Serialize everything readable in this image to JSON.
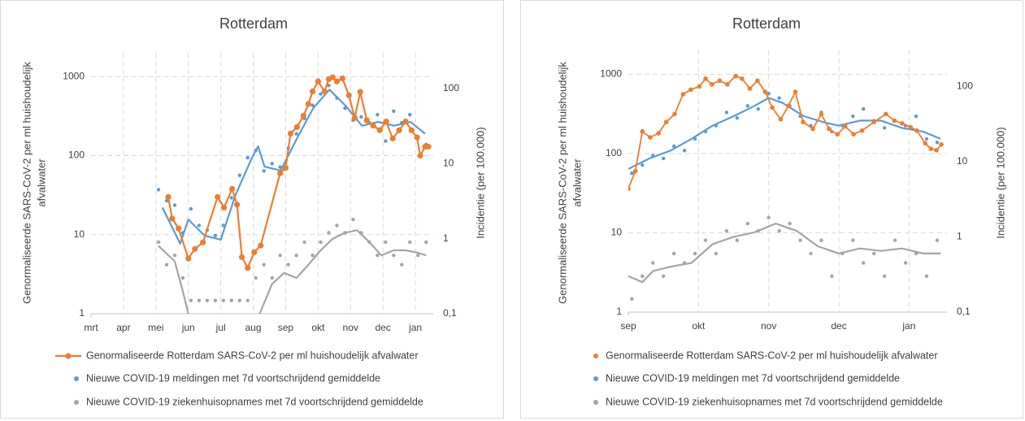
{
  "chart_data": [
    {
      "type": "line",
      "title": "Rotterdam",
      "y_label": [
        "Genormaliseerde SARS-CoV-2 per ml huishoudelijk",
        "afvalwater"
      ],
      "y2_label": "Incidentie (per 100.000)",
      "log_y": true,
      "grid": true,
      "xlim": [
        0,
        10.55
      ],
      "xticks": [
        {
          "value": 0,
          "label": "mrt"
        },
        {
          "value": 1,
          "label": "apr"
        },
        {
          "value": 2,
          "label": "mei"
        },
        {
          "value": 3,
          "label": "jun"
        },
        {
          "value": 4,
          "label": "jul"
        },
        {
          "value": 5,
          "label": "aug"
        },
        {
          "value": 6,
          "label": "sep"
        },
        {
          "value": 7,
          "label": "okt"
        },
        {
          "value": 8,
          "label": "nov"
        },
        {
          "value": 9,
          "label": "dec"
        },
        {
          "value": 10,
          "label": "jan"
        }
      ],
      "ylim": [
        1,
        2000
      ],
      "yticks": [
        1,
        10,
        100,
        1000
      ],
      "y2lim": [
        0.1,
        300
      ],
      "y2ticks": [
        {
          "value": 0.1,
          "label": "0,1"
        },
        1,
        10,
        100
      ],
      "series": [
        {
          "name": "Genormaliseerde Rotterdam SARS-CoV-2 per ml huishoudelijk afvalwater",
          "color": "#ed7d31",
          "axis": "y",
          "style": "line+markers",
          "x": [
            2.38,
            2.5,
            2.7,
            3.0,
            3.2,
            3.45,
            3.9,
            4.1,
            4.35,
            4.5,
            4.65,
            4.83,
            5.03,
            5.23,
            5.83,
            6.0,
            6.15,
            6.35,
            6.55,
            6.7,
            6.83,
            7.0,
            7.2,
            7.33,
            7.45,
            7.58,
            7.75,
            7.95,
            8.13,
            8.3,
            8.5,
            8.7,
            8.9,
            9.1,
            9.3,
            9.5,
            9.7,
            9.88,
            10.05,
            10.15,
            10.3,
            10.4
          ],
          "values": [
            30,
            16,
            12,
            5,
            6.6,
            8,
            30,
            22,
            38,
            24,
            5.2,
            3.8,
            6,
            7.3,
            60,
            70,
            190,
            230,
            320,
            450,
            650,
            870,
            650,
            930,
            980,
            870,
            950,
            580,
            300,
            640,
            280,
            240,
            210,
            270,
            165,
            210,
            270,
            210,
            170,
            100,
            130,
            130
          ]
        },
        {
          "name": "Nieuwe COVID-19 meldingen met 7d voortschrijdend gemiddelde",
          "color": "#5b9bd5",
          "axis": "y2",
          "style": "dots+average",
          "x": [
            2.08,
            2.33,
            2.58,
            2.83,
            3.08,
            3.33,
            3.58,
            3.83,
            4.08,
            4.33,
            4.58,
            4.83,
            5.08,
            5.33,
            5.58,
            5.83,
            6.08,
            6.33,
            6.58,
            6.83,
            7.08,
            7.33,
            7.58,
            7.83,
            8.08,
            8.33,
            8.58,
            8.83,
            9.08,
            9.33,
            9.58,
            9.83,
            10.08,
            10.33
          ],
          "values": [
            4.5,
            3.2,
            2.8,
            1.2,
            2.5,
            1.5,
            1.3,
            1.1,
            1.5,
            3.5,
            7,
            12,
            15,
            8,
            10,
            9,
            16,
            25,
            40,
            60,
            85,
            110,
            75,
            55,
            38,
            42,
            35,
            45,
            20,
            50,
            35,
            45,
            22,
            18
          ],
          "average_x": [
            2.2,
            2.75,
            3.0,
            3.5,
            4.0,
            4.45,
            4.95,
            5.15,
            5.35,
            5.85,
            6.35,
            6.85,
            7.35,
            7.85,
            8.35,
            8.85,
            9.35,
            9.85,
            10.3
          ],
          "average": [
            2.6,
            0.86,
            1.8,
            1.1,
            0.97,
            3.8,
            11.7,
            17,
            9.1,
            8.1,
            21.8,
            55,
            97,
            59,
            32,
            36,
            32,
            36,
            25
          ]
        },
        {
          "name": "Nieuwe COVID-19 ziekenhuisopnames met 7d voortschrijdend gemiddelde",
          "color": "#a5a5a5",
          "axis": "y2",
          "style": "dots+average",
          "x": [
            2.08,
            2.33,
            2.58,
            2.83,
            3.08,
            3.33,
            3.58,
            3.83,
            4.08,
            4.33,
            4.58,
            4.83,
            5.08,
            5.33,
            5.58,
            5.83,
            6.08,
            6.33,
            6.58,
            6.83,
            7.08,
            7.33,
            7.58,
            7.83,
            8.08,
            8.33,
            8.58,
            8.83,
            9.08,
            9.33,
            9.58,
            9.83,
            10.08,
            10.33
          ],
          "values": [
            0.9,
            0.45,
            0.6,
            0.3,
            0.15,
            0.15,
            0.15,
            0.15,
            0.15,
            0.15,
            0.15,
            0.15,
            0.3,
            0.45,
            0.3,
            0.6,
            0.45,
            0.6,
            0.9,
            0.6,
            0.9,
            1.2,
            1.5,
            1.2,
            1.8,
            1.2,
            0.9,
            0.6,
            0.9,
            0.6,
            0.45,
            0.9,
            0.6,
            0.9
          ],
          "average_x": [
            2.08,
            2.58,
            2.83,
            3.0,
            4.0,
            5.2,
            5.58,
            5.95,
            6.33,
            6.7,
            7.08,
            7.45,
            7.83,
            8.2,
            8.58,
            8.95,
            9.33,
            9.7,
            10.08,
            10.33
          ],
          "average": [
            0.8,
            0.5,
            0.2,
            0.1,
            null,
            0.1,
            0.25,
            0.35,
            0.3,
            0.45,
            0.7,
            1.0,
            1.2,
            1.3,
            0.9,
            0.6,
            0.7,
            0.7,
            0.65,
            0.6
          ]
        }
      ]
    },
    {
      "type": "line",
      "title": "Rotterdam",
      "y_label": [
        "Genormaliseerde SARS-CoV-2 per ml huishoudelijk",
        "afvalwater"
      ],
      "y2_label": "Incidentie (per 100.000)",
      "log_y": true,
      "grid": true,
      "xlim": [
        0,
        4.54
      ],
      "xticks": [
        {
          "value": 0,
          "label": "sep"
        },
        {
          "value": 1,
          "label": "okt"
        },
        {
          "value": 2,
          "label": "nov"
        },
        {
          "value": 3,
          "label": "dec"
        },
        {
          "value": 4,
          "label": "jan"
        }
      ],
      "ylim": [
        1,
        2000
      ],
      "yticks": [
        1,
        10,
        100,
        1000
      ],
      "y2lim": [
        0.1,
        300
      ],
      "y2ticks": [
        {
          "value": 0.1,
          "label": "0,1"
        },
        1,
        10,
        100
      ],
      "series": [
        {
          "name": "Genormaliseerde Rotterdam SARS-CoV-2 per ml huishoudelijk afvalwater",
          "color": "#ed7d31",
          "axis": "y",
          "style": "dots+line",
          "x": [
            0,
            0.1,
            0.2,
            0.31,
            0.43,
            0.54,
            0.66,
            0.78,
            0.89,
            1.01,
            1.1,
            1.19,
            1.3,
            1.41,
            1.53,
            1.62,
            1.73,
            1.84,
            1.95,
            2.05,
            2.17,
            2.28,
            2.38,
            2.49,
            2.63,
            2.75,
            2.86,
            2.98,
            3.09,
            3.21,
            3.33,
            3.5,
            3.67,
            3.79,
            3.9,
            4.02,
            4.11,
            4.23,
            4.31,
            4.39,
            4.46
          ],
          "values": [
            36,
            60,
            190,
            160,
            180,
            250,
            315,
            560,
            640,
            700,
            880,
            745,
            830,
            745,
            950,
            880,
            660,
            830,
            600,
            380,
            270,
            400,
            600,
            250,
            205,
            315,
            205,
            175,
            220,
            175,
            195,
            250,
            315,
            260,
            240,
            215,
            195,
            135,
            115,
            110,
            130
          ]
        },
        {
          "name": "Nieuwe COVID-19 meldingen met 7d voortschrijdend gemiddelde",
          "color": "#5b9bd5",
          "axis": "y2",
          "style": "dots+average",
          "x": [
            0.05,
            0.2,
            0.35,
            0.5,
            0.65,
            0.8,
            0.95,
            1.1,
            1.25,
            1.4,
            1.55,
            1.7,
            1.85,
            2.0,
            2.15,
            2.3,
            2.45,
            2.6,
            2.75,
            2.9,
            3.05,
            3.2,
            3.35,
            3.5,
            3.65,
            3.8,
            3.95,
            4.1,
            4.25,
            4.4
          ],
          "values": [
            7,
            9,
            12,
            11,
            16,
            14,
            20,
            25,
            30,
            45,
            38,
            55,
            50,
            80,
            70,
            55,
            40,
            30,
            45,
            25,
            30,
            40,
            50,
            35,
            28,
            35,
            30,
            40,
            20,
            18
          ],
          "average_x": [
            0,
            0.3,
            0.6,
            0.9,
            1.2,
            1.5,
            1.8,
            2.0,
            2.2,
            2.5,
            2.8,
            3.0,
            3.3,
            3.6,
            3.9,
            4.2,
            4.45
          ],
          "average": [
            8,
            11,
            14,
            20,
            30,
            40,
            55,
            70,
            60,
            40,
            33,
            30,
            35,
            35,
            28,
            25,
            20
          ]
        },
        {
          "name": "Nieuwe COVID-19 ziekenhuisopnames met 7d voortschrijdend gemiddelde",
          "color": "#a5a5a5",
          "axis": "y2",
          "style": "dots+average",
          "x": [
            0.05,
            0.2,
            0.35,
            0.5,
            0.65,
            0.8,
            0.95,
            1.1,
            1.25,
            1.4,
            1.55,
            1.7,
            1.85,
            2.0,
            2.15,
            2.3,
            2.45,
            2.6,
            2.75,
            2.9,
            3.05,
            3.2,
            3.35,
            3.5,
            3.65,
            3.8,
            3.95,
            4.1,
            4.25,
            4.4
          ],
          "values": [
            0.15,
            0.3,
            0.45,
            0.3,
            0.6,
            0.45,
            0.6,
            0.9,
            0.6,
            1.2,
            0.9,
            1.5,
            1.2,
            1.8,
            1.2,
            1.5,
            0.9,
            0.6,
            0.9,
            0.3,
            0.6,
            0.9,
            0.45,
            0.6,
            0.3,
            0.9,
            0.45,
            0.6,
            0.3,
            0.9
          ],
          "average_x": [
            0,
            0.2,
            0.35,
            0.6,
            0.9,
            1.2,
            1.5,
            1.8,
            2.1,
            2.4,
            2.7,
            3.0,
            3.3,
            3.6,
            3.9,
            4.2,
            4.45
          ],
          "average": [
            0.3,
            0.25,
            0.35,
            0.4,
            0.45,
            0.8,
            1.0,
            1.15,
            1.5,
            1.2,
            0.75,
            0.6,
            0.7,
            0.65,
            0.7,
            0.6,
            0.6
          ]
        }
      ]
    }
  ]
}
